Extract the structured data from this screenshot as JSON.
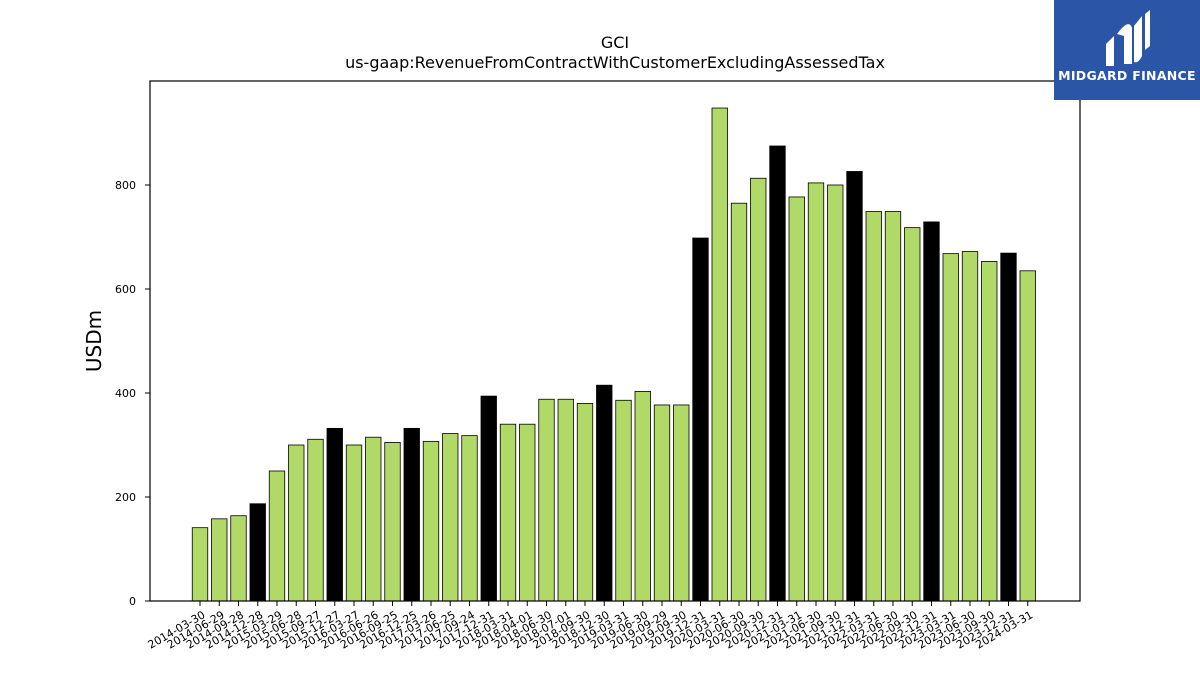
{
  "chart_data": {
    "type": "bar",
    "title": "GCI",
    "subtitle": "us-gaap:RevenueFromContractWithCustomerExcludingAssessedTax",
    "xlabel": "",
    "ylabel": "USDm",
    "ylim": [
      0,
      1000
    ],
    "yticks": [
      0,
      200,
      400,
      600,
      800
    ],
    "grid": false,
    "categories": [
      "2014-03-30",
      "2014-06-29",
      "2014-09-28",
      "2014-12-28",
      "2015-03-29",
      "2015-06-28",
      "2015-09-27",
      "2015-12-27",
      "2016-03-27",
      "2016-06-26",
      "2016-09-25",
      "2016-12-25",
      "2017-03-26",
      "2017-06-25",
      "2017-09-24",
      "2017-12-31",
      "2018-03-31",
      "2018-04-01",
      "2018-06-30",
      "2018-07-01",
      "2018-09-30",
      "2018-12-30",
      "2019-03-31",
      "2019-06-30",
      "2019-09-29",
      "2019-09-30",
      "2019-12-31",
      "2020-03-31",
      "2020-06-30",
      "2020-09-30",
      "2020-12-31",
      "2021-03-31",
      "2021-06-30",
      "2021-09-30",
      "2021-12-31",
      "2022-03-31",
      "2022-06-30",
      "2022-09-30",
      "2022-12-31",
      "2023-03-31",
      "2023-06-30",
      "2023-09-30",
      "2023-12-31",
      "2024-03-31"
    ],
    "values": [
      141,
      158,
      164,
      187,
      250,
      300,
      311,
      332,
      300,
      315,
      305,
      332,
      307,
      322,
      318,
      394,
      340,
      340,
      388,
      388,
      380,
      415,
      386,
      403,
      377,
      377,
      698,
      948,
      765,
      813,
      875,
      777,
      804,
      800,
      826,
      749,
      749,
      718,
      729,
      668,
      672,
      653,
      669,
      635
    ],
    "highlighted": [
      false,
      false,
      false,
      true,
      false,
      false,
      false,
      true,
      false,
      false,
      false,
      true,
      false,
      false,
      false,
      true,
      false,
      false,
      false,
      false,
      false,
      true,
      false,
      false,
      false,
      false,
      true,
      false,
      false,
      false,
      true,
      false,
      false,
      false,
      true,
      false,
      false,
      false,
      true,
      false,
      false,
      false,
      true,
      false
    ],
    "colors": {
      "bar": "#b0d968",
      "highlight": "#000000",
      "edge": "#000000"
    }
  },
  "logo": {
    "text": "MIDGARD FINANCE",
    "background": "#2b56a8"
  }
}
